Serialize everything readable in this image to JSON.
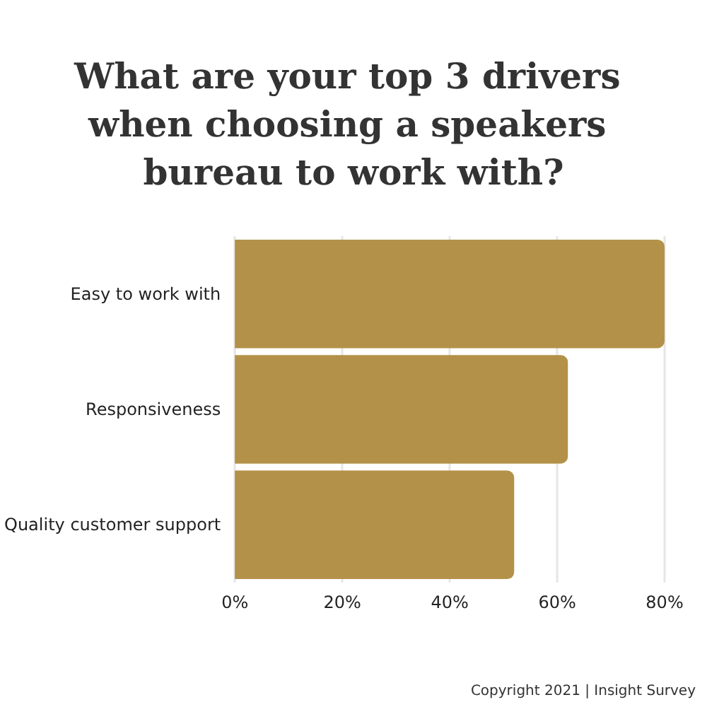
{
  "chart_data": {
    "type": "bar",
    "orientation": "horizontal",
    "title": "What are your top 3 drivers when choosing a speakers bureau to work with?",
    "categories": [
      "Easy to work with",
      "Responsiveness",
      "Quality customer support"
    ],
    "values": [
      80,
      62,
      52
    ],
    "color": "#b39148",
    "xlim": [
      0,
      80
    ],
    "xticks": [
      {
        "value": 0,
        "label": "0%"
      },
      {
        "value": 20,
        "label": "20%"
      },
      {
        "value": 40,
        "label": "40%"
      },
      {
        "value": 60,
        "label": "60%"
      },
      {
        "value": 80,
        "label": "80%"
      }
    ],
    "grid": "x",
    "annotations": [
      "Copyright 2021 | Insight Survey"
    ]
  }
}
